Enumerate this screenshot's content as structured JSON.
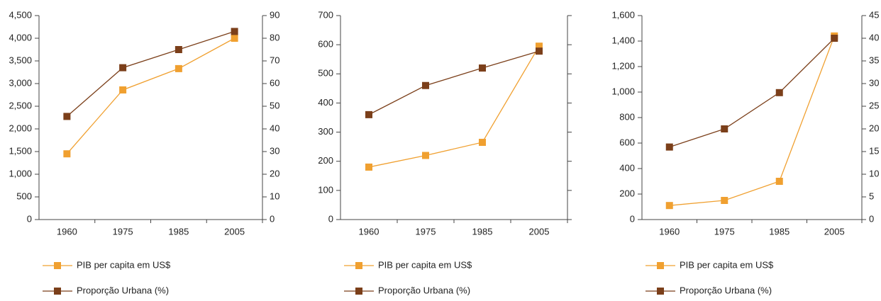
{
  "chart_data": [
    {
      "type": "line",
      "categories": [
        "1960",
        "1975",
        "1985",
        "2005"
      ],
      "series": [
        {
          "name": "PIB per capita em US$",
          "color": "#f0a030",
          "values": [
            1450,
            2860,
            3330,
            4000
          ]
        },
        {
          "name": "Proporção Urbana (%)",
          "color": "#7b3f1a",
          "values": [
            45.5,
            67,
            75,
            83
          ],
          "axis": "y2"
        }
      ],
      "ylim": [
        0,
        4500
      ],
      "yticks": [
        0,
        500,
        {
          "value": 1000,
          "label": "1,000"
        },
        {
          "value": 1500,
          "label": "1,500"
        },
        {
          "value": 2000,
          "label": "2,000"
        },
        {
          "value": 2500,
          "label": "2,500"
        },
        {
          "value": 3000,
          "label": "3,000"
        },
        {
          "value": 3500,
          "label": "3,500"
        },
        {
          "value": 4000,
          "label": "4,000"
        },
        {
          "value": 4500,
          "label": "4,500"
        }
      ],
      "y2lim": [
        0,
        90
      ],
      "y2ticks": [
        0,
        10,
        20,
        30,
        40,
        50,
        60,
        70,
        80,
        90
      ]
    },
    {
      "type": "line",
      "categories": [
        "1960",
        "1975",
        "1985",
        "2005"
      ],
      "series": [
        {
          "name": "PIB per capita em US$",
          "color": "#f0a030",
          "values": [
            180,
            220,
            265,
            595
          ]
        },
        {
          "name": "Proporção Urbana (%)",
          "color": "#7b3f1a",
          "values": [
            360,
            460,
            520,
            578
          ]
        }
      ],
      "ylim": [
        0,
        700
      ],
      "yticks": [
        0,
        100,
        200,
        300,
        400,
        500,
        600,
        700
      ]
    },
    {
      "type": "line",
      "categories": [
        "1960",
        "1975",
        "1985",
        "2005"
      ],
      "series": [
        {
          "name": "PIB per capita em US$",
          "color": "#f0a030",
          "values": [
            110,
            150,
            300,
            1440
          ]
        },
        {
          "name": "Proporção Urbana (%)",
          "color": "#7b3f1a",
          "values": [
            16,
            20,
            28,
            40
          ],
          "axis": "y2"
        }
      ],
      "ylim": [
        0,
        1600
      ],
      "yticks": [
        0,
        200,
        400,
        600,
        800,
        {
          "value": 1000,
          "label": "1,000"
        },
        {
          "value": 1200,
          "label": "1,200"
        },
        {
          "value": 1400,
          "label": "1,400"
        },
        {
          "value": 1600,
          "label": "1,600"
        }
      ],
      "y2lim": [
        0,
        45
      ],
      "y2ticks": [
        0,
        5,
        10,
        15,
        20,
        25,
        30,
        35,
        40,
        45
      ]
    }
  ]
}
